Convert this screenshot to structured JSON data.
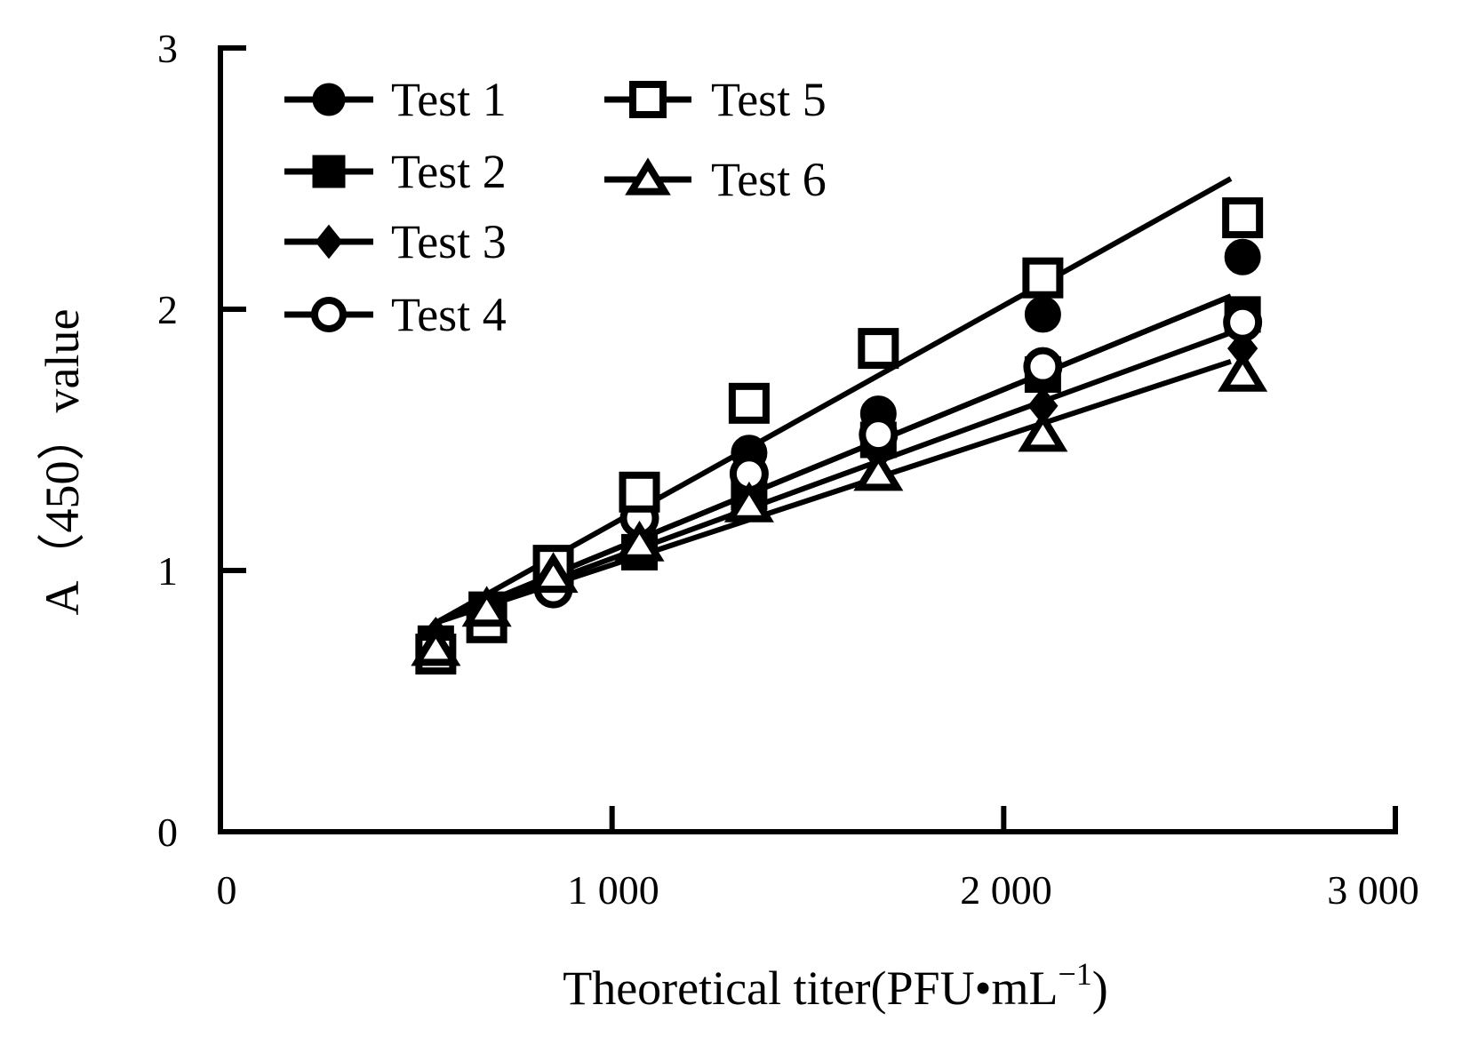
{
  "chart_data": {
    "type": "scatter",
    "title": "",
    "xlabel": "Theoretical titer(PFU•mL",
    "xlabel_superscript": "−1",
    "xlabel_suffix": ")",
    "ylabel": "A（450）value",
    "xlim": [
      0,
      3000
    ],
    "ylim": [
      0,
      3
    ],
    "x_ticks": [
      0,
      1000,
      2000,
      3000
    ],
    "x_tick_labels": [
      "0",
      "1 000",
      "2 000",
      "3 000"
    ],
    "y_ticks": [
      0,
      1,
      2,
      3
    ],
    "y_tick_labels": [
      "0",
      "1",
      "2",
      "3"
    ],
    "grid": false,
    "legend_position": "top-left",
    "x": [
      550,
      680,
      850,
      1070,
      1350,
      1680,
      2100,
      2610
    ],
    "series": [
      {
        "name": "Test 1",
        "marker": "circle-filled",
        "values": [
          0.7,
          0.83,
          0.95,
          1.2,
          1.45,
          1.6,
          1.98,
          2.2
        ],
        "fit": [
          [
            550,
            0.8
          ],
          [
            2580,
            2.05
          ]
        ]
      },
      {
        "name": "Test 2",
        "marker": "square-filled",
        "values": [
          0.72,
          0.85,
          1.0,
          1.07,
          1.3,
          1.5,
          1.75,
          1.98
        ],
        "fit": [
          [
            550,
            0.8
          ],
          [
            2580,
            2.05
          ]
        ]
      },
      {
        "name": "Test 3",
        "marker": "diamond-filled",
        "values": [
          0.75,
          0.83,
          0.98,
          1.22,
          1.3,
          1.45,
          1.63,
          1.85
        ],
        "fit": [
          [
            550,
            0.8
          ],
          [
            2580,
            1.91
          ]
        ]
      },
      {
        "name": "Test 4",
        "marker": "circle-open",
        "values": [
          0.68,
          0.82,
          0.93,
          1.2,
          1.37,
          1.52,
          1.78,
          1.95
        ],
        "fit": [
          [
            550,
            0.8
          ],
          [
            2580,
            2.05
          ]
        ]
      },
      {
        "name": "Test 5",
        "marker": "square-open",
        "values": [
          0.68,
          0.8,
          1.02,
          1.3,
          1.64,
          1.85,
          2.12,
          2.35
        ],
        "fit": [
          [
            550,
            0.8
          ],
          [
            2580,
            2.5
          ]
        ]
      },
      {
        "name": "Test 6",
        "marker": "triangle-open",
        "values": [
          0.7,
          0.85,
          0.98,
          1.1,
          1.25,
          1.37,
          1.52,
          1.75
        ],
        "fit": [
          [
            550,
            0.8
          ],
          [
            2580,
            1.8
          ]
        ]
      }
    ]
  }
}
